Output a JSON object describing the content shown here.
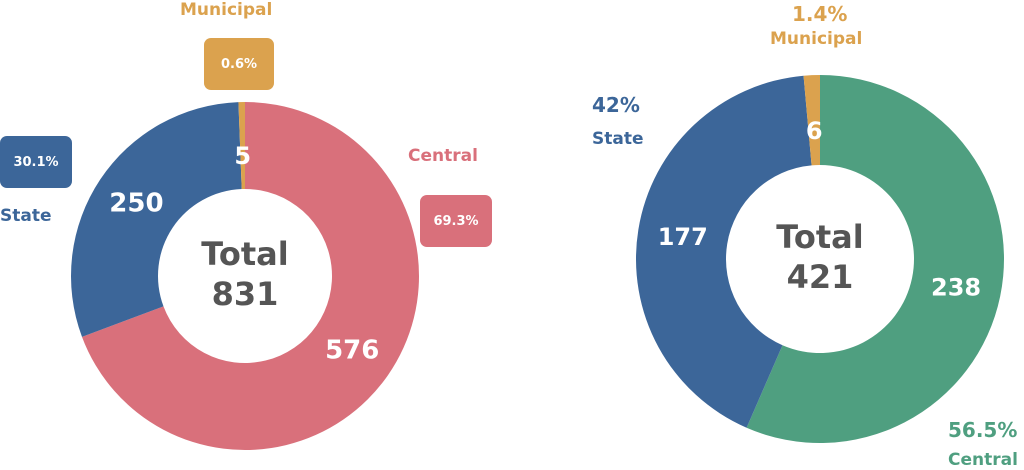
{
  "chart_data": [
    {
      "type": "pie",
      "center_label": "Total",
      "center_value": "831",
      "slices": [
        {
          "label": "Central",
          "value": 576,
          "value_label": "576",
          "percent_label": "69.3%",
          "color": "#d9707b"
        },
        {
          "label": "State",
          "value": 250,
          "value_label": "250",
          "percent_label": "30.1%",
          "color": "#3c6699"
        },
        {
          "label": "Municipal",
          "value": 5,
          "value_label": "5",
          "percent_label": "0.6%",
          "color": "#dba24e"
        }
      ]
    },
    {
      "type": "pie",
      "center_label": "Total",
      "center_value": "421",
      "slices": [
        {
          "label": "Central",
          "value": 238,
          "value_label": "238",
          "percent_label": "56.5%",
          "color": "#4f9f80"
        },
        {
          "label": "State",
          "value": 177,
          "value_label": "177",
          "percent_label": "42%",
          "color": "#3c6699"
        },
        {
          "label": "Municipal",
          "value": 6,
          "value_label": "6",
          "percent_label": "1.4%",
          "color": "#dba24e"
        }
      ]
    }
  ]
}
